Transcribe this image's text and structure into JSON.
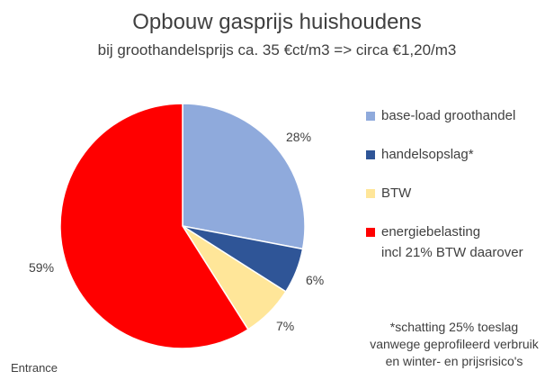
{
  "chart_data": {
    "type": "pie",
    "title": "Opbouw gasprijs huishoudens",
    "subtitle": "bij groothandelsprijs ca. 35 €ct/m3 => circa €1,20/m3",
    "slices": [
      {
        "name": "base-load groothandel",
        "value": 28,
        "label": "28%",
        "color": "#8FAADC"
      },
      {
        "name": "handelsopslag*",
        "value": 6,
        "label": "6%",
        "color": "#2F5597"
      },
      {
        "name": "BTW",
        "value": 7,
        "label": "7%",
        "color": "#FFE699"
      },
      {
        "name": "energiebelasting incl 21% BTW daarover",
        "value": 59,
        "label": "59%",
        "color": "#FF0000"
      }
    ],
    "legend_position": "right"
  },
  "legend": {
    "item1": "base-load groothandel",
    "item2": "handelsopslag*",
    "item3": "BTW",
    "item4_line1": "energiebelasting",
    "item4_line2": "incl 21% BTW daarover"
  },
  "footnote": {
    "line1": "*schatting 25% toeslag",
    "line2": "vanwege geprofileerd verbruik",
    "line3": "en winter- en prijsrisico's"
  },
  "corner_label": "Entrance"
}
